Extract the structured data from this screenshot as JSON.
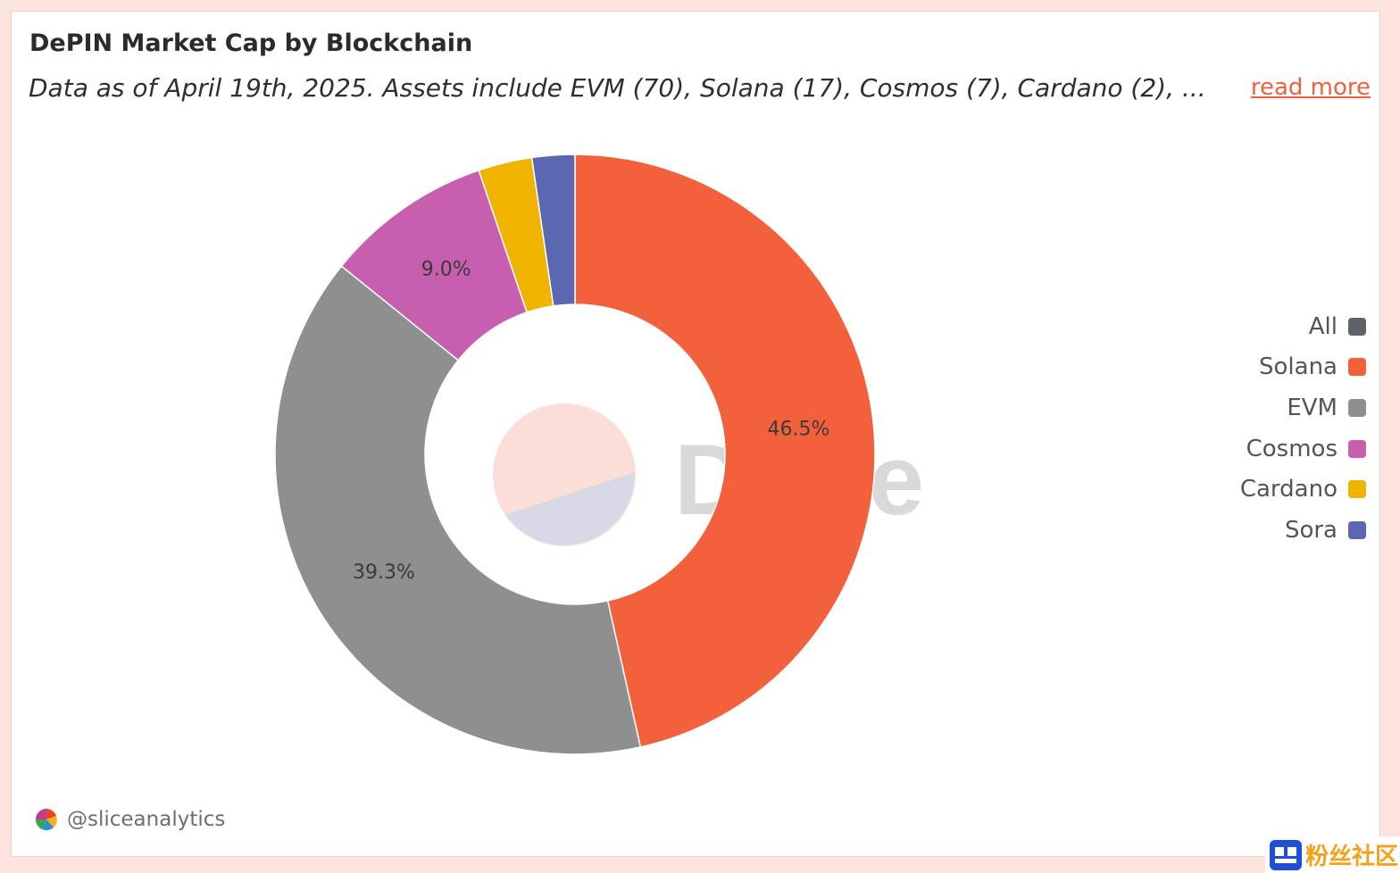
{
  "header": {
    "title": "DePIN Market Cap by Blockchain",
    "subtitle": "Data as of April 19th, 2025. Assets include EVM (70), Solana (17), Cosmos (7), Cardano (2), ...",
    "read_more": "read more"
  },
  "chart_data": {
    "type": "pie",
    "title": "DePIN Market Cap by Blockchain",
    "donut": true,
    "slices": [
      {
        "label": "Solana",
        "value": 46.5,
        "color": "#f2613c",
        "show_label": true
      },
      {
        "label": "EVM",
        "value": 39.3,
        "color": "#8f8f8f",
        "show_label": true
      },
      {
        "label": "Cosmos",
        "value": 9.0,
        "color": "#c85fae",
        "show_label": true
      },
      {
        "label": "Cardano",
        "value": 2.9,
        "color": "#f0b400",
        "show_label": false
      },
      {
        "label": "Sora",
        "value": 2.3,
        "color": "#5b67b1",
        "show_label": false
      }
    ],
    "legend_position": "right",
    "legend": [
      {
        "label": "All",
        "color": "#5f6368"
      },
      {
        "label": "Solana",
        "color": "#f2613c"
      },
      {
        "label": "EVM",
        "color": "#8f8f8f"
      },
      {
        "label": "Cosmos",
        "color": "#c85fae"
      },
      {
        "label": "Cardano",
        "color": "#f0b400"
      },
      {
        "label": "Sora",
        "color": "#5b67b1"
      }
    ]
  },
  "watermark": {
    "text": "Dune"
  },
  "footer": {
    "handle": "@sliceanalytics"
  },
  "corner_badge": {
    "text": "粉丝社区"
  }
}
